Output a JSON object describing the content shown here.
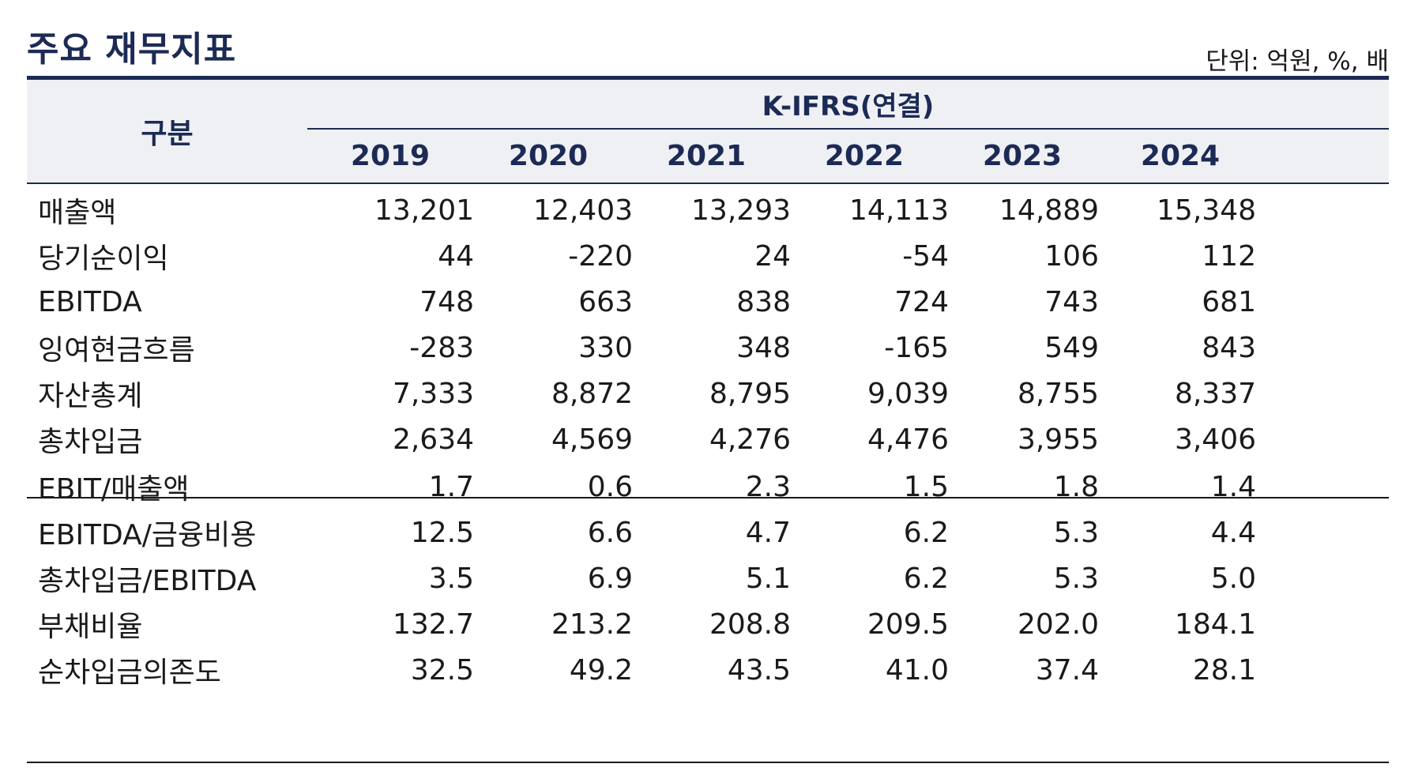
{
  "title": "주요 재무지표",
  "unit": "단위: 억원, %, 배",
  "header": {
    "row_label": "구분",
    "group": "K-IFRS(연결)",
    "years": [
      "2019",
      "2020",
      "2021",
      "2022",
      "2023",
      "2024"
    ]
  },
  "rows": [
    {
      "label": "매출액",
      "values": [
        "13,201",
        "12,403",
        "13,293",
        "14,113",
        "14,889",
        "15,348"
      ]
    },
    {
      "label": "당기순이익",
      "values": [
        "44",
        "-220",
        "24",
        "-54",
        "106",
        "112"
      ]
    },
    {
      "label": "EBITDA",
      "values": [
        "748",
        "663",
        "838",
        "724",
        "743",
        "681"
      ]
    },
    {
      "label": "잉여현금흐름",
      "values": [
        "-283",
        "330",
        "348",
        "-165",
        "549",
        "843"
      ]
    },
    {
      "label": "자산총계",
      "values": [
        "7,333",
        "8,872",
        "8,795",
        "9,039",
        "8,755",
        "8,337"
      ]
    },
    {
      "label": "총차입금",
      "values": [
        "2,634",
        "4,569",
        "4,276",
        "4,476",
        "3,955",
        "3,406"
      ]
    },
    {
      "label": "EBIT/매출액",
      "values": [
        "1.7",
        "0.6",
        "2.3",
        "1.5",
        "1.8",
        "1.4"
      ]
    },
    {
      "label": "EBITDA/금융비용",
      "values": [
        "12.5",
        "6.6",
        "4.7",
        "6.2",
        "5.3",
        "4.4"
      ]
    },
    {
      "label": "총차입금/EBITDA",
      "values": [
        "3.5",
        "6.9",
        "5.1",
        "6.2",
        "5.3",
        "5.0"
      ]
    },
    {
      "label": "부채비율",
      "values": [
        "132.7",
        "213.2",
        "208.8",
        "209.5",
        "202.0",
        "184.1"
      ]
    },
    {
      "label": "순차입금의존도",
      "values": [
        "32.5",
        "49.2",
        "43.5",
        "41.0",
        "37.4",
        "28.1"
      ]
    }
  ],
  "colors": {
    "accent": "#1c2a55",
    "header_bg": "#eef0f4"
  }
}
